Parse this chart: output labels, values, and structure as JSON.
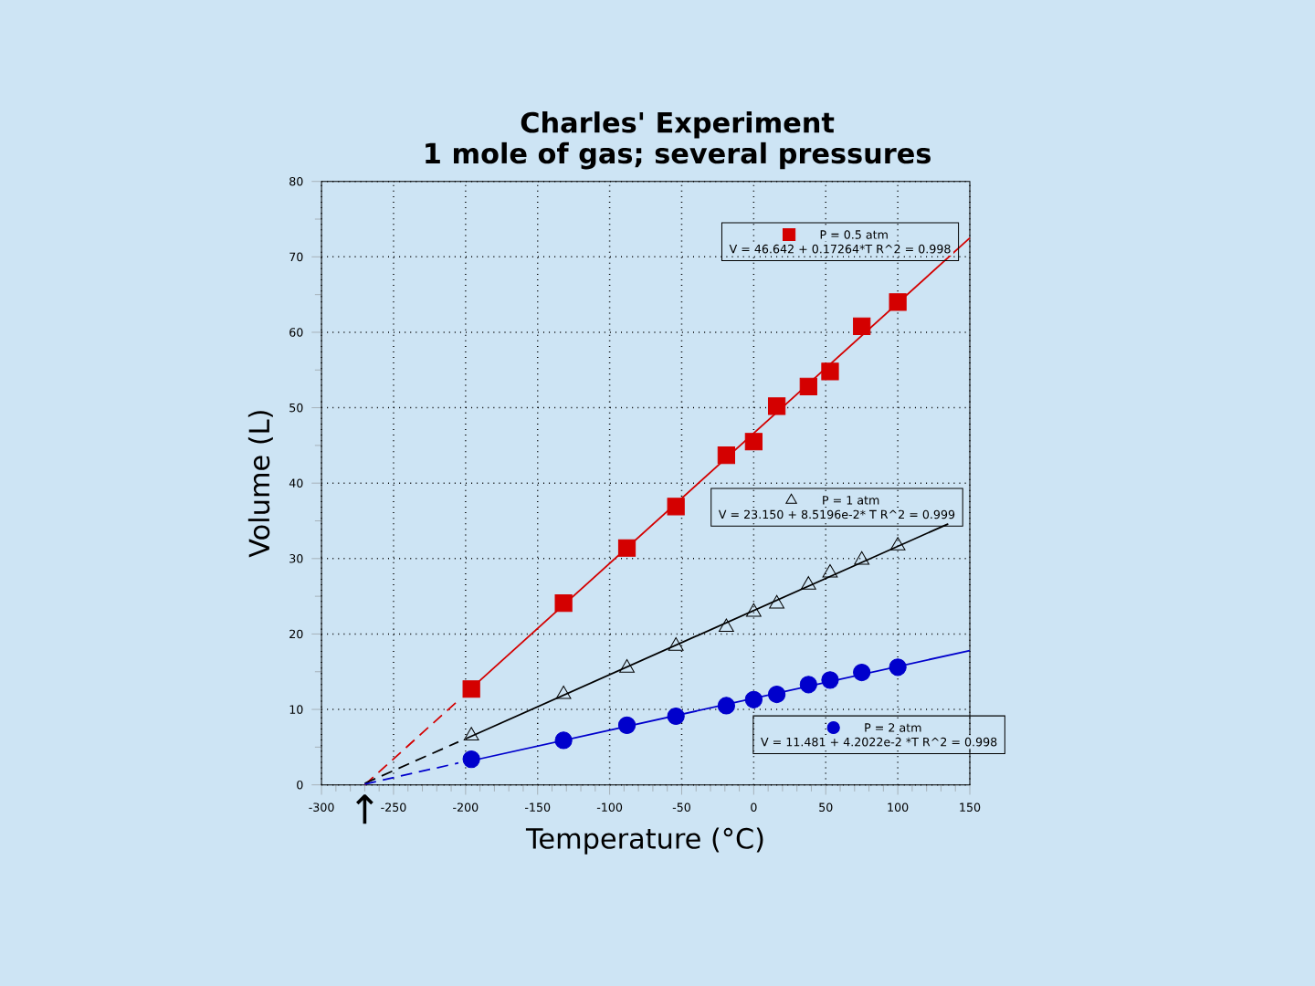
{
  "chart_data": {
    "type": "scatter",
    "title": "Charles' Experiment",
    "subtitle": "1 mole of gas; several pressures",
    "xlabel": "Temperature (°C)",
    "ylabel": "Volume (L)",
    "xlim": [
      -300,
      150
    ],
    "ylim": [
      0,
      80
    ],
    "xticks": [
      -300,
      -250,
      -200,
      -150,
      -100,
      -50,
      0,
      50,
      100,
      150
    ],
    "yticks": [
      0,
      10,
      20,
      30,
      40,
      50,
      60,
      70,
      80
    ],
    "grid": true,
    "legend": "right",
    "annotations": [
      "V = 46.642 + 0.17264*T   R^2 = 0.998",
      "V = 23.150 + 8.5196e-2* T   R^2 = 0.999",
      "V = 11.481 + 4.2022e-2 *T   R^2 = 0.998",
      {
        "text": "↑",
        "x": -270,
        "y": 0
      }
    ],
    "series": [
      {
        "name": "P = 0.5 atm",
        "marker": "square",
        "color": "#d40000",
        "x": [
          -196,
          -132,
          -88,
          -54,
          -19,
          0,
          16,
          38,
          53,
          75,
          100
        ],
        "values": [
          12.7,
          24.1,
          31.4,
          36.9,
          43.7,
          45.5,
          50.2,
          52.8,
          54.8,
          60.8,
          64.0
        ]
      },
      {
        "name": "P = 1 atm",
        "marker": "triangle",
        "color": "#000000",
        "x": [
          -196,
          -132,
          -88,
          -54,
          -19,
          0,
          16,
          38,
          53,
          75,
          100
        ],
        "values": [
          6.5,
          12.0,
          15.5,
          18.4,
          20.9,
          22.9,
          24.0,
          26.5,
          28.1,
          29.8,
          31.7
        ]
      },
      {
        "name": "P = 2 atm",
        "marker": "circle",
        "color": "#0000cc",
        "x": [
          -196,
          -132,
          -88,
          -54,
          -19,
          0,
          16,
          38,
          53,
          75,
          100
        ],
        "values": [
          3.4,
          5.9,
          7.9,
          9.1,
          10.5,
          11.3,
          12.0,
          13.3,
          13.9,
          14.9,
          15.6
        ]
      },
      {
        "type": "line",
        "line_style": "solid",
        "color": "#d40000",
        "x": [
          -196,
          150
        ],
        "values": [
          12.8,
          72.5
        ]
      },
      {
        "type": "line",
        "line_style": "solid",
        "color": "#000000",
        "x": [
          -200,
          135
        ],
        "values": [
          6.1,
          34.6
        ]
      },
      {
        "type": "line",
        "line_style": "solid",
        "color": "#0000cc",
        "x": [
          -196,
          150
        ],
        "values": [
          3.2,
          17.8
        ]
      },
      {
        "type": "line",
        "line_style": "dashed",
        "color": "#d40000",
        "x": [
          -270,
          -205
        ],
        "values": [
          0.0,
          11.2
        ]
      },
      {
        "type": "line",
        "line_style": "dashed",
        "color": "#000000",
        "x": [
          -270,
          -205
        ],
        "values": [
          0.2,
          5.7
        ]
      },
      {
        "type": "line",
        "line_style": "dashed",
        "color": "#0000cc",
        "x": [
          -270,
          -205
        ],
        "values": [
          0.1,
          2.9
        ]
      }
    ]
  }
}
